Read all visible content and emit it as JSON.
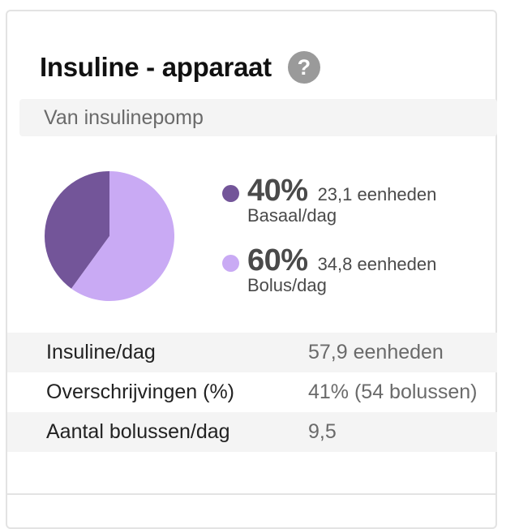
{
  "card": {
    "title": "Insuline - apparaat",
    "help_icon": "question-mark-icon",
    "source": "Van insulinepomp"
  },
  "legend": [
    {
      "percent": "40%",
      "units": "23,1 eenheden",
      "label": "Basaal/dag",
      "color": "#735599"
    },
    {
      "percent": "60%",
      "units": "34,8 eenheden",
      "label": "Bolus/dag",
      "color": "#c9aaf4"
    }
  ],
  "stats": [
    {
      "label": "Insuline/dag",
      "value": "57,9 eenheden"
    },
    {
      "label": "Overschrijvingen (%)",
      "value": "41% (54 bolussen)"
    },
    {
      "label": "Aantal bolussen/dag",
      "value": "9,5"
    }
  ],
  "chart_data": {
    "type": "pie",
    "categories": [
      "Basaal/dag",
      "Bolus/dag"
    ],
    "values": [
      40,
      60
    ],
    "colors": [
      "#735599",
      "#c9aaf4"
    ]
  }
}
